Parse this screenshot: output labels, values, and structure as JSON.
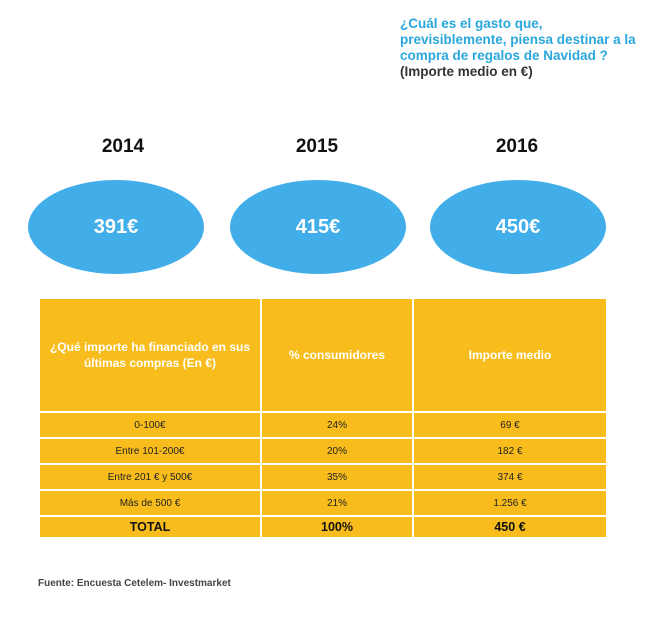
{
  "question": {
    "lines": [
      "¿Cuál es el gasto que,",
      "previsiblemente, piensa destinar a la",
      "compra de regalos de Navidad ?"
    ],
    "subtitle": "(Importe medio en €)"
  },
  "years": [
    {
      "year": "2014",
      "amount": "391€"
    },
    {
      "year": "2015",
      "amount": "415€"
    },
    {
      "year": "2016",
      "amount": "450€"
    }
  ],
  "table": {
    "headers": [
      "¿Qué importe ha financiado en sus últimas compras (En €)",
      "% consumidores",
      "Importe medio"
    ],
    "rows": [
      [
        "0-100€",
        "24%",
        "69 €"
      ],
      [
        "Entre 101-200€",
        "20%",
        "182 €"
      ],
      [
        "Entre 201 € y 500€",
        "35%",
        "374 €"
      ],
      [
        "Más de 500 €",
        "21%",
        "1.256 €"
      ]
    ],
    "total": [
      "TOTAL",
      "100%",
      "450 €"
    ]
  },
  "source": "Fuente: Encuesta Cetelem- Investmarket",
  "colors": {
    "question_text": "#2aa7dc",
    "bubble": "#41ade9",
    "table_fill": "#f8bd1c"
  }
}
